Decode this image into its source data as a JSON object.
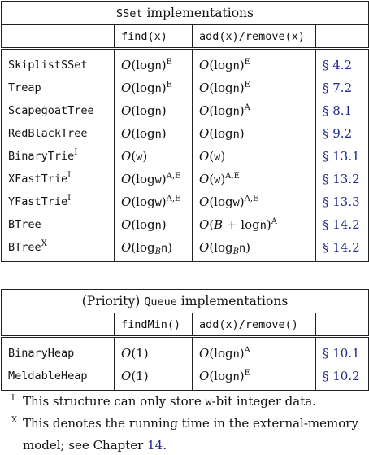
{
  "sset": {
    "title_a": "SSet",
    "title_b": " implementations",
    "headers": [
      "",
      "find(x)",
      "add(x)/remove(x)",
      ""
    ],
    "rows": [
      {
        "name": "SkiplistSSet",
        "name_sup": "",
        "find": "O(log n)",
        "find_sup": "E",
        "add": "O(log n)",
        "add_sup": "E",
        "ref": "§ 4.2"
      },
      {
        "name": "Treap",
        "name_sup": "",
        "find": "O(log n)",
        "find_sup": "E",
        "add": "O(log n)",
        "add_sup": "E",
        "ref": "§ 7.2"
      },
      {
        "name": "ScapegoatTree",
        "name_sup": "",
        "find": "O(log n)",
        "find_sup": "",
        "add": "O(log n)",
        "add_sup": "A",
        "ref": "§ 8.1"
      },
      {
        "name": "RedBlackTree",
        "name_sup": "",
        "find": "O(log n)",
        "find_sup": "",
        "add": "O(log n)",
        "add_sup": "",
        "ref": "§ 9.2"
      },
      {
        "name": "BinaryTrie",
        "name_sup": "I",
        "find": "O(w)",
        "find_sup": "",
        "add": "O(w)",
        "add_sup": "",
        "ref": "§ 13.1"
      },
      {
        "name": "XFastTrie",
        "name_sup": "I",
        "find": "O(log w)",
        "find_sup": "A,E",
        "add": "O(w)",
        "add_sup": "A,E",
        "ref": "§ 13.2"
      },
      {
        "name": "YFastTrie",
        "name_sup": "I",
        "find": "O(log w)",
        "find_sup": "A,E",
        "add": "O(log w)",
        "add_sup": "A,E",
        "ref": "§ 13.3"
      },
      {
        "name": "BTree",
        "name_sup": "",
        "find": "O(log n)",
        "find_sup": "",
        "add": "O(B + log n)",
        "add_sup": "A",
        "ref": "§ 14.2"
      },
      {
        "name": "BTree",
        "name_sup": "X",
        "find": "O(log_B n)",
        "find_sup": "",
        "add": "O(log_B n)",
        "add_sup": "",
        "ref": "§ 14.2"
      }
    ]
  },
  "pqueue": {
    "title_a": "(Priority) ",
    "title_b": "Queue",
    "title_c": " implementations",
    "headers": [
      "",
      "findMin()",
      "add(x)/remove()",
      ""
    ],
    "rows": [
      {
        "name": "BinaryHeap",
        "find": "O(1)",
        "add": "O(log n)",
        "add_sup": "A",
        "ref": "§ 10.1"
      },
      {
        "name": "MeldableHeap",
        "find": "O(1)",
        "add": "O(log n)",
        "add_sup": "E",
        "ref": "§ 10.2"
      }
    ]
  },
  "notes": {
    "n1_mark": "I",
    "n1_a": "This structure can only store ",
    "n1_code": "w",
    "n1_b": "-bit integer data.",
    "n2_mark": "X",
    "n2_line1": "This denotes the running time in the external-memory",
    "n2_line2_a": "model; see Chapter ",
    "n2_link": "14",
    "n2_line2_b": "."
  }
}
